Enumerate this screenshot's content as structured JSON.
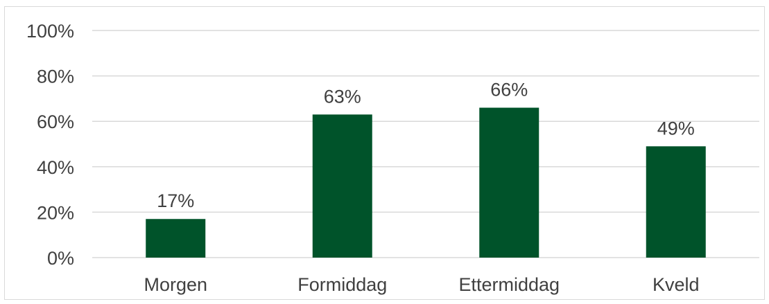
{
  "chart_data": {
    "type": "bar",
    "title": "",
    "xlabel": "",
    "ylabel": "",
    "categories": [
      "Morgen",
      "Formiddag",
      "Ettermiddag",
      "Kveld"
    ],
    "values": [
      17,
      63,
      66,
      49
    ],
    "data_labels": [
      "17%",
      "63%",
      "66%",
      "49%"
    ],
    "ylim": [
      0,
      100
    ],
    "yticks": [
      0,
      20,
      40,
      60,
      80,
      100
    ],
    "ytick_labels": [
      "0%",
      "20%",
      "40%",
      "60%",
      "80%",
      "100%"
    ],
    "grid": true,
    "legend": "none",
    "bar_color": "#00532a",
    "grid_color": "#d9d9d9",
    "text_color": "#404040"
  }
}
